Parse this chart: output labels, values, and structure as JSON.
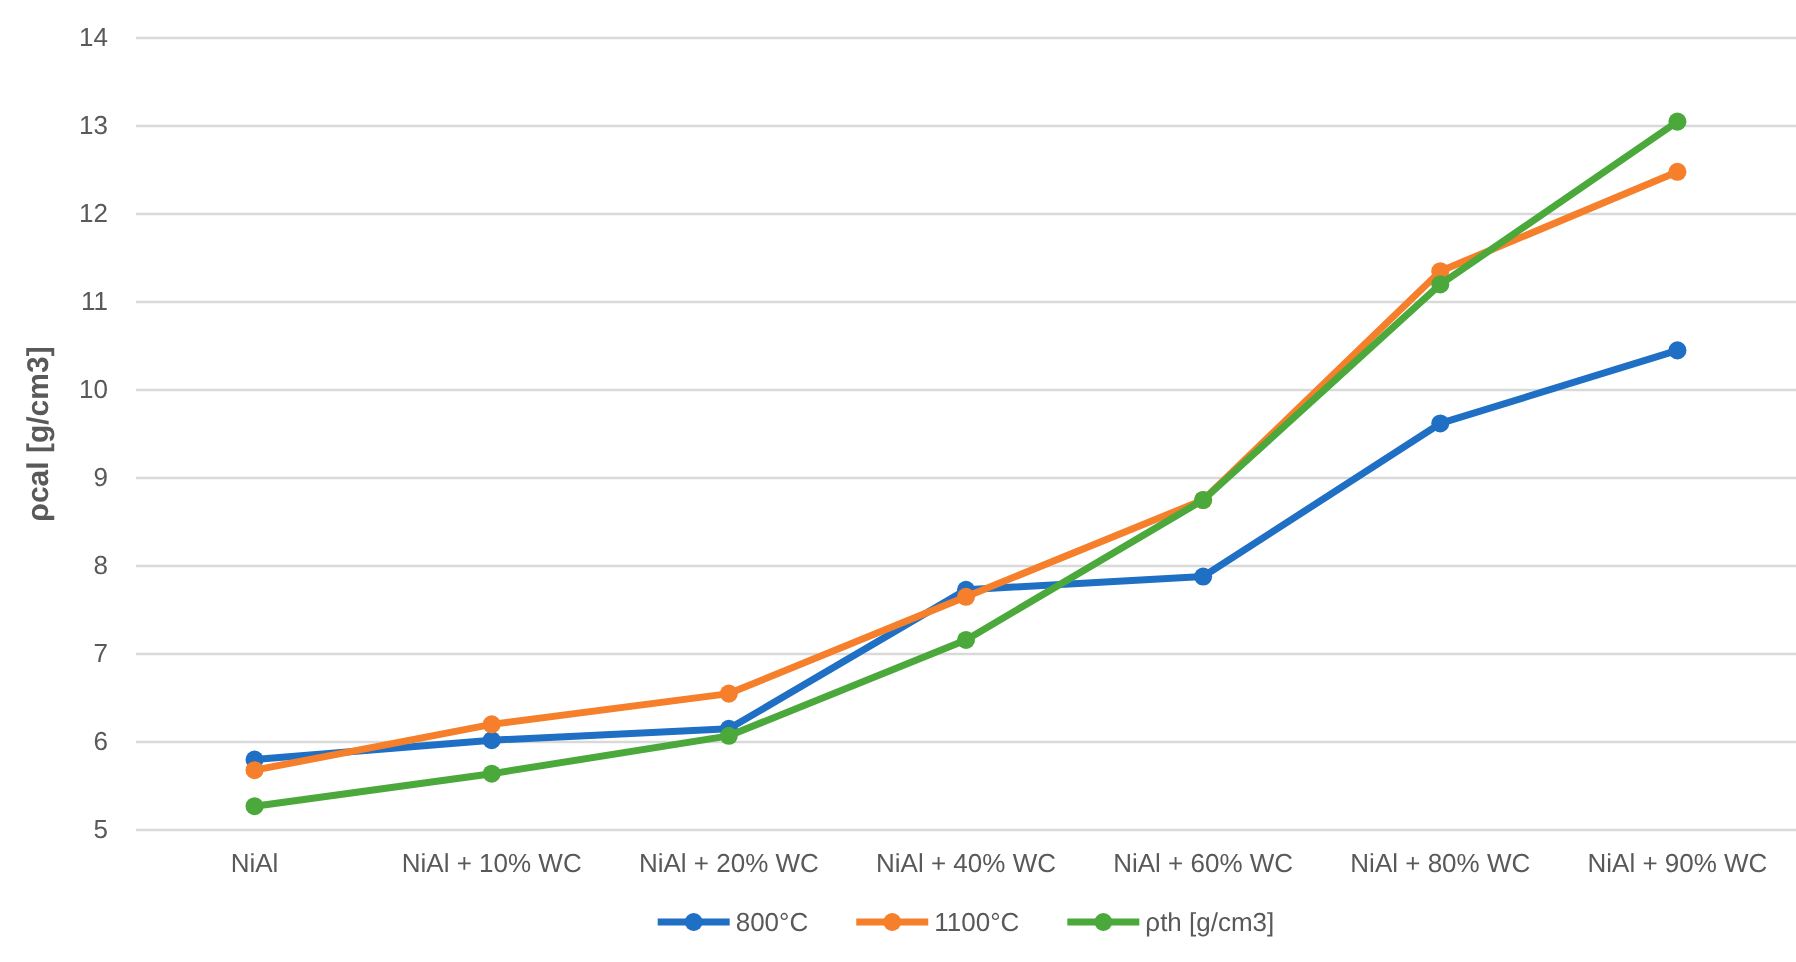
{
  "chart_data": {
    "type": "line",
    "ylabel": "ρcal [g/cm3]",
    "categories": [
      "NiAl",
      "NiAl + 10% WC",
      "NiAl + 20% WC",
      "NiAl + 40% WC",
      "NiAl + 60% WC",
      "NiAl + 80% WC",
      "NiAl + 90% WC"
    ],
    "series": [
      {
        "name": "800°C",
        "color": "#1f6fc5",
        "values": [
          5.8,
          6.02,
          6.15,
          7.73,
          7.88,
          9.62,
          10.45
        ]
      },
      {
        "name": "1100°C",
        "color": "#f57f2a",
        "values": [
          5.68,
          6.2,
          6.55,
          7.65,
          8.75,
          11.35,
          12.48
        ]
      },
      {
        "name": "ρth [g/cm3]",
        "color": "#4aa93a",
        "values": [
          5.27,
          5.64,
          6.07,
          7.16,
          8.75,
          11.2,
          13.05
        ]
      }
    ],
    "ylim": [
      5,
      14
    ],
    "yticks": [
      5,
      6,
      7,
      8,
      9,
      10,
      11,
      12,
      13,
      14
    ],
    "grid": "y",
    "legend": "bottom",
    "marker": "circle",
    "line_style": "solid"
  }
}
